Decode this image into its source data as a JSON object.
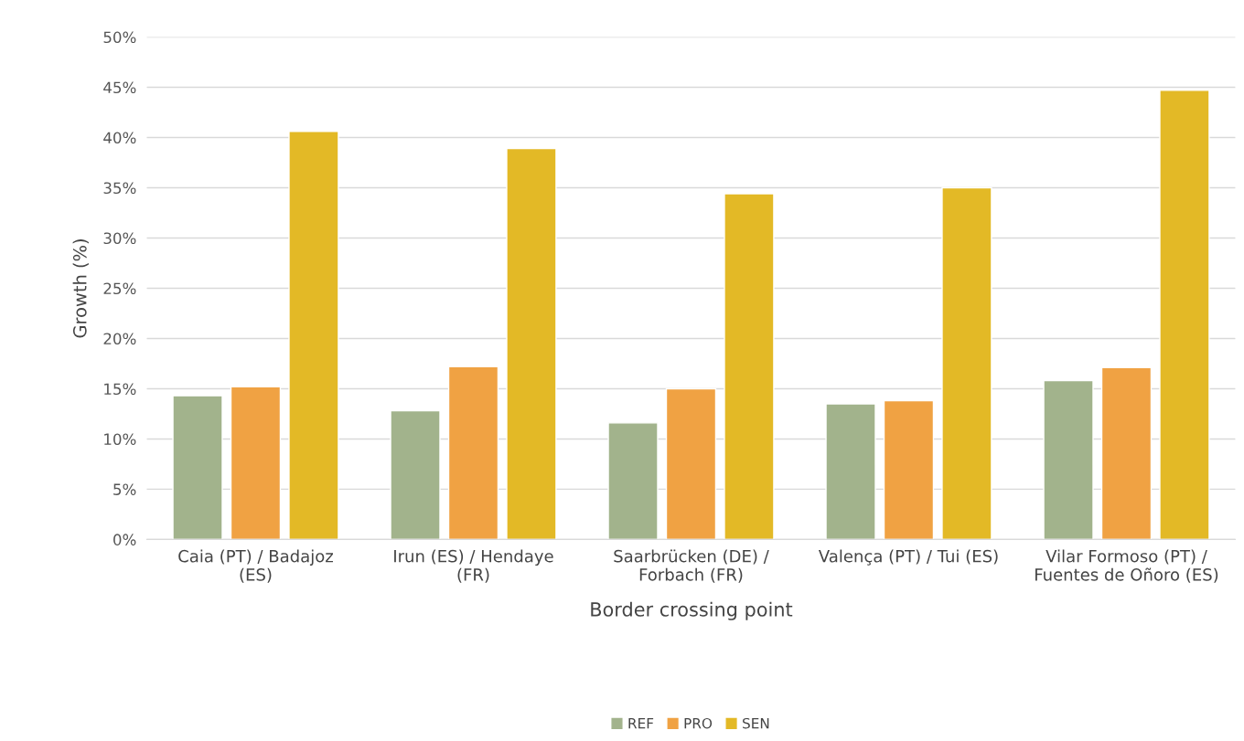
{
  "chart_data": {
    "type": "bar",
    "xlabel": "Border crossing point",
    "ylabel": "Growth (%)",
    "categories": [
      "Caia (PT) / Badajoz\n(ES)",
      "Irun (ES) / Hendaye\n(FR)",
      "Saarbrücken (DE) /\nForbach (FR)",
      "Valença (PT) / Tui (ES)",
      "Vilar Formoso (PT) /\nFuentes de Oñoro (ES)"
    ],
    "series": [
      {
        "name": "REF",
        "color": "#a2b38c",
        "values": [
          14.3,
          12.8,
          11.6,
          13.5,
          15.8
        ]
      },
      {
        "name": "PRO",
        "color": "#f0a243",
        "values": [
          15.2,
          17.2,
          15.0,
          13.8,
          17.1
        ]
      },
      {
        "name": "SEN",
        "color": "#e3b926",
        "values": [
          40.6,
          38.9,
          34.4,
          35.0,
          44.7
        ]
      }
    ],
    "ylim": [
      0,
      50
    ],
    "yticks": [
      {
        "value": 0,
        "label": "0%"
      },
      {
        "value": 5,
        "label": "5%"
      },
      {
        "value": 10,
        "label": "10%"
      },
      {
        "value": 15,
        "label": "15%"
      },
      {
        "value": 20,
        "label": "20%"
      },
      {
        "value": 25,
        "label": "25%"
      },
      {
        "value": 30,
        "label": "30%"
      },
      {
        "value": 35,
        "label": "35%"
      },
      {
        "value": 40,
        "label": "40%"
      },
      {
        "value": 45,
        "label": "45%"
      },
      {
        "value": 50,
        "label": "50%"
      }
    ],
    "grid": "y",
    "legend": "bottom"
  }
}
